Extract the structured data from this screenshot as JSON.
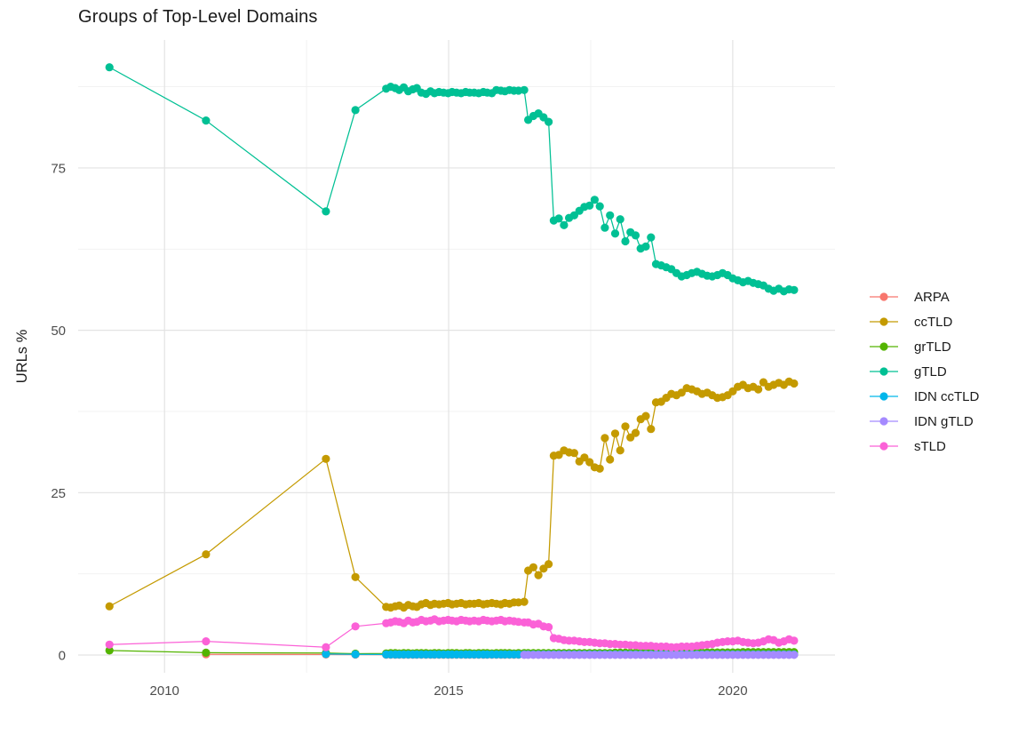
{
  "title": "Groups of Top-Level Domains",
  "y_axis": {
    "label": "URLs %",
    "tick_labels": [
      "0",
      "25",
      "50",
      "75"
    ]
  },
  "x_axis": {
    "label": "",
    "tick_labels": [
      "2010",
      "2015",
      "2020"
    ]
  },
  "legend": {
    "position": "right",
    "items": [
      {
        "label": "ARPA",
        "color": "#F8766D"
      },
      {
        "label": "ccTLD",
        "color": "#C49A00"
      },
      {
        "label": "grTLD",
        "color": "#53B400"
      },
      {
        "label": "gTLD",
        "color": "#00C094"
      },
      {
        "label": "IDN ccTLD",
        "color": "#00B6EB"
      },
      {
        "label": "IDN gTLD",
        "color": "#A58AFF"
      },
      {
        "label": "sTLD",
        "color": "#FB61D7"
      }
    ]
  },
  "colors": {
    "grid_major": "#e3e3e3",
    "grid_minor": "#f0f0f0",
    "tick_text": "#4d4d4d",
    "axis_title": "#1a1a1a"
  },
  "chart_data": {
    "type": "line",
    "title": "Groups of Top-Level Domains",
    "xlabel": "",
    "ylabel": "URLs %",
    "xlim": [
      2008.48,
      2021.8
    ],
    "ylim": [
      -2.74,
      94.7
    ],
    "x_ticks": [
      2010,
      2015,
      2020
    ],
    "x_minor": [
      2012.5,
      2017.5
    ],
    "y_ticks": [
      0,
      25,
      50,
      75
    ],
    "y_minor": [
      12.5,
      37.5,
      62.5,
      87.5
    ],
    "legend_position": "right",
    "grid": true,
    "x": [
      2009.03,
      2010.73,
      2012.84,
      2013.36,
      2013.9,
      2013.98,
      2014.06,
      2014.13,
      2014.21,
      2014.29,
      2014.37,
      2014.44,
      2014.52,
      2014.6,
      2014.68,
      2014.75,
      2014.83,
      2014.91,
      2014.99,
      2015.06,
      2015.14,
      2015.22,
      2015.3,
      2015.37,
      2015.45,
      2015.53,
      2015.61,
      2015.68,
      2015.76,
      2015.84,
      2015.92,
      2015.99,
      2016.07,
      2016.15,
      2016.23,
      2016.33,
      2016.4,
      2016.49,
      2016.58,
      2016.67,
      2016.76,
      2016.85,
      2016.94,
      2017.03,
      2017.12,
      2017.21,
      2017.3,
      2017.39,
      2017.48,
      2017.57,
      2017.66,
      2017.75,
      2017.84,
      2017.93,
      2018.02,
      2018.11,
      2018.2,
      2018.29,
      2018.38,
      2018.47,
      2018.56,
      2018.65,
      2018.74,
      2018.83,
      2018.92,
      2019.01,
      2019.1,
      2019.19,
      2019.28,
      2019.37,
      2019.46,
      2019.55,
      2019.64,
      2019.73,
      2019.82,
      2019.91,
      2020.0,
      2020.09,
      2020.18,
      2020.27,
      2020.36,
      2020.45,
      2020.54,
      2020.63,
      2020.72,
      2020.81,
      2020.9,
      2020.99,
      2021.08
    ],
    "series": [
      {
        "name": "ARPA",
        "color": "#F8766D",
        "values": [
          null,
          0.1,
          0.08,
          0.06,
          0.05,
          0.05,
          0.05,
          0.05,
          0.05,
          0.05,
          0.05,
          0.05,
          0.05,
          0.05,
          0.05,
          0.05,
          0.05,
          0.05,
          0.05,
          0.05,
          0.05,
          0.05,
          0.05,
          0.05,
          0.05,
          0.05,
          0.05,
          0.05,
          0.05,
          0.05,
          0.05,
          0.05,
          0.05,
          0.05,
          0.05,
          0.05,
          0.05,
          0.05,
          0.05,
          0.05,
          0.05,
          0.05,
          0.05,
          0.05,
          0.05,
          0.05,
          0.05,
          0.05,
          0.05,
          0.05,
          0.05,
          0.05,
          0.05,
          0.05,
          0.05,
          0.05,
          0.05,
          0.05,
          0.05,
          0.05,
          0.05,
          0.05,
          0.05,
          0.05,
          0.05,
          0.05,
          0.05,
          0.05,
          0.05,
          0.05,
          0.05,
          0.05,
          0.05,
          0.05,
          0.05,
          0.05,
          0.05,
          0.05,
          0.05,
          0.05,
          0.05,
          0.05,
          0.05,
          0.05,
          0.05,
          0.05,
          0.05,
          0.05,
          0.05
        ]
      },
      {
        "name": "ccTLD",
        "color": "#C49A00",
        "values": [
          7.5,
          15.5,
          30.2,
          12.0,
          7.4,
          7.3,
          7.5,
          7.6,
          7.3,
          7.7,
          7.5,
          7.4,
          7.8,
          8.0,
          7.7,
          7.9,
          7.8,
          7.9,
          8.0,
          7.8,
          7.9,
          8.0,
          7.8,
          7.9,
          7.9,
          8.0,
          7.8,
          7.9,
          8.0,
          7.9,
          7.8,
          8.0,
          7.9,
          8.1,
          8.1,
          8.2,
          13.0,
          13.5,
          12.3,
          13.3,
          14.0,
          30.7,
          30.8,
          31.5,
          31.2,
          31.1,
          29.8,
          30.4,
          29.7,
          28.9,
          28.7,
          33.4,
          30.1,
          34.1,
          31.5,
          35.2,
          33.5,
          34.2,
          36.3,
          36.8,
          34.8,
          38.9,
          39.0,
          39.6,
          40.2,
          40.0,
          40.4,
          41.1,
          40.9,
          40.6,
          40.2,
          40.4,
          40.0,
          39.6,
          39.7,
          40.0,
          40.6,
          41.3,
          41.6,
          41.1,
          41.3,
          40.9,
          42.0,
          41.3,
          41.6,
          41.9,
          41.6,
          42.1,
          41.8
        ]
      },
      {
        "name": "grTLD",
        "color": "#53B400",
        "values": [
          0.7,
          0.35,
          0.3,
          0.2,
          0.25,
          0.3,
          0.3,
          0.25,
          0.3,
          0.3,
          0.25,
          0.3,
          0.3,
          0.3,
          0.25,
          0.3,
          0.3,
          0.25,
          0.3,
          0.3,
          0.3,
          0.25,
          0.3,
          0.3,
          0.25,
          0.3,
          0.3,
          0.3,
          0.25,
          0.3,
          0.3,
          0.3,
          0.3,
          0.25,
          0.3,
          0.3,
          0.3,
          0.3,
          0.3,
          0.3,
          0.3,
          0.3,
          0.3,
          0.3,
          0.3,
          0.3,
          0.3,
          0.3,
          0.3,
          0.3,
          0.3,
          0.3,
          0.3,
          0.35,
          0.35,
          0.35,
          0.35,
          0.35,
          0.35,
          0.35,
          0.35,
          0.35,
          0.35,
          0.35,
          0.35,
          0.35,
          0.4,
          0.4,
          0.4,
          0.4,
          0.4,
          0.4,
          0.4,
          0.4,
          0.4,
          0.4,
          0.4,
          0.4,
          0.45,
          0.45,
          0.45,
          0.45,
          0.45,
          0.45,
          0.45,
          0.45,
          0.45,
          0.45,
          0.45
        ]
      },
      {
        "name": "gTLD",
        "color": "#00C094",
        "values": [
          90.5,
          82.3,
          68.3,
          83.9,
          87.2,
          87.5,
          87.3,
          87.0,
          87.4,
          86.8,
          87.1,
          87.3,
          86.6,
          86.4,
          86.8,
          86.5,
          86.7,
          86.6,
          86.5,
          86.7,
          86.6,
          86.5,
          86.7,
          86.6,
          86.6,
          86.5,
          86.7,
          86.6,
          86.5,
          87.0,
          86.9,
          86.8,
          87.0,
          86.9,
          86.9,
          87.0,
          82.4,
          83.0,
          83.4,
          82.8,
          82.1,
          66.9,
          67.2,
          66.2,
          67.3,
          67.7,
          68.4,
          69.0,
          69.2,
          70.1,
          69.1,
          65.8,
          67.7,
          64.9,
          67.1,
          63.7,
          65.1,
          64.6,
          62.6,
          62.9,
          64.3,
          60.2,
          60.0,
          59.7,
          59.4,
          58.8,
          58.3,
          58.5,
          58.8,
          59.0,
          58.7,
          58.4,
          58.3,
          58.5,
          58.8,
          58.5,
          58.0,
          57.7,
          57.4,
          57.6,
          57.3,
          57.1,
          56.9,
          56.4,
          56.1,
          56.4,
          56.0,
          56.3,
          56.2
        ]
      },
      {
        "name": "IDN ccTLD",
        "color": "#00B6EB",
        "values": [
          null,
          null,
          0.15,
          0.1,
          0.08,
          0.08,
          0.08,
          0.08,
          0.08,
          0.08,
          0.08,
          0.08,
          0.08,
          0.08,
          0.08,
          0.08,
          0.08,
          0.08,
          0.08,
          0.08,
          0.08,
          0.08,
          0.08,
          0.08,
          0.08,
          0.08,
          0.08,
          0.08,
          0.08,
          0.08,
          0.08,
          0.08,
          0.08,
          0.08,
          0.08,
          0.08,
          0.08,
          0.08,
          0.08,
          0.08,
          0.08,
          0.08,
          0.08,
          0.08,
          0.08,
          0.08,
          0.08,
          0.08,
          0.08,
          0.08,
          0.08,
          0.08,
          0.08,
          0.08,
          0.08,
          0.08,
          0.08,
          0.08,
          0.08,
          0.08,
          0.08,
          0.08,
          0.08,
          0.08,
          0.08,
          0.08,
          0.08,
          0.08,
          0.08,
          0.08,
          0.08,
          0.08,
          0.08,
          0.08,
          0.08,
          0.08,
          0.08,
          0.08,
          0.08,
          0.08,
          0.08,
          0.08,
          0.08,
          0.08,
          0.08,
          0.08,
          0.08,
          0.08,
          0.08
        ]
      },
      {
        "name": "IDN gTLD",
        "color": "#A58AFF",
        "values": [
          null,
          null,
          null,
          null,
          null,
          null,
          null,
          null,
          null,
          null,
          null,
          null,
          null,
          null,
          null,
          null,
          null,
          null,
          null,
          null,
          null,
          null,
          null,
          null,
          null,
          null,
          null,
          null,
          null,
          null,
          null,
          null,
          null,
          null,
          null,
          0.02,
          0.02,
          0.02,
          0.02,
          0.02,
          0.02,
          0.02,
          0.02,
          0.02,
          0.02,
          0.02,
          0.02,
          0.02,
          0.02,
          0.02,
          0.02,
          0.02,
          0.02,
          0.02,
          0.02,
          0.02,
          0.02,
          0.02,
          0.02,
          0.02,
          0.02,
          0.02,
          0.02,
          0.02,
          0.02,
          0.02,
          0.02,
          0.02,
          0.02,
          0.02,
          0.02,
          0.02,
          0.02,
          0.02,
          0.02,
          0.02,
          0.02,
          0.02,
          0.02,
          0.02,
          0.02,
          0.02,
          0.02,
          0.02,
          0.02,
          0.02,
          0.02,
          0.02,
          0.02
        ]
      },
      {
        "name": "sTLD",
        "color": "#FB61D7",
        "values": [
          1.6,
          2.1,
          1.2,
          4.4,
          4.9,
          5.0,
          5.2,
          5.1,
          4.9,
          5.3,
          5.0,
          5.1,
          5.4,
          5.2,
          5.3,
          5.5,
          5.2,
          5.3,
          5.4,
          5.3,
          5.2,
          5.4,
          5.3,
          5.2,
          5.3,
          5.2,
          5.4,
          5.3,
          5.2,
          5.3,
          5.4,
          5.2,
          5.3,
          5.2,
          5.1,
          5.0,
          5.0,
          4.7,
          4.8,
          4.4,
          4.3,
          2.6,
          2.5,
          2.3,
          2.2,
          2.2,
          2.1,
          2.0,
          2.0,
          1.9,
          1.8,
          1.8,
          1.7,
          1.7,
          1.6,
          1.6,
          1.5,
          1.5,
          1.4,
          1.4,
          1.4,
          1.3,
          1.3,
          1.3,
          1.2,
          1.2,
          1.3,
          1.3,
          1.3,
          1.4,
          1.5,
          1.6,
          1.7,
          1.9,
          2.0,
          2.1,
          2.1,
          2.2,
          2.0,
          1.9,
          1.8,
          1.9,
          2.1,
          2.4,
          2.3,
          1.9,
          2.1,
          2.4,
          2.2
        ]
      }
    ]
  }
}
